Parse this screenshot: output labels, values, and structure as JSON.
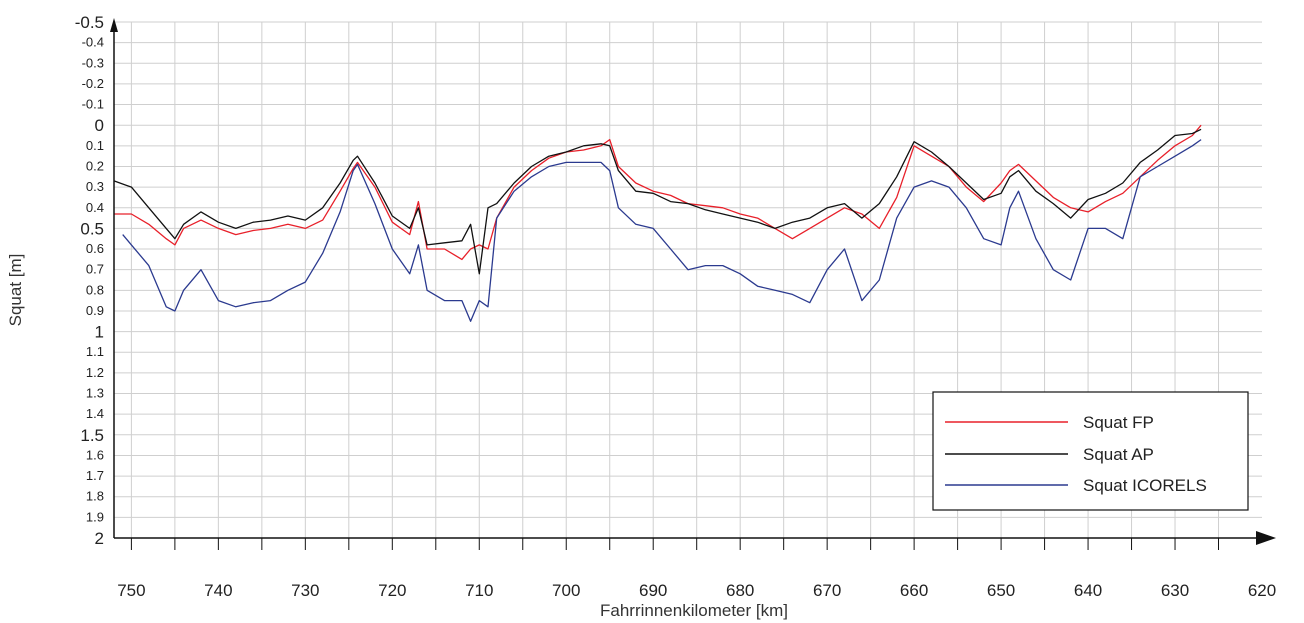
{
  "chart_data": {
    "type": "line",
    "title": "",
    "xlabel": "Fahrrinnenkilometer [km]",
    "ylabel": "Squat [m]",
    "xlim": [
      752,
      620
    ],
    "ylim": [
      -0.5,
      2
    ],
    "y_inverted": true,
    "x_ticks": [
      750,
      740,
      730,
      720,
      710,
      700,
      690,
      680,
      670,
      660,
      650,
      640,
      630,
      620
    ],
    "y_ticks": [
      "-0.5",
      "-0.4",
      "-0.3",
      "-0.2",
      "-0.1",
      "0",
      "0.1",
      "0.2",
      "0.3",
      "0.4",
      "0.5",
      "0.6",
      "0.7",
      "0.8",
      "0.9",
      "1",
      "1.1",
      "1.2",
      "1.3",
      "1.4",
      "1.5",
      "1.6",
      "1.7",
      "1.8",
      "1.9",
      "2"
    ],
    "grid": true,
    "legend_position": "bottom-right",
    "series": [
      {
        "name": "Squat FP",
        "color": "#e8202a",
        "x": [
          752,
          750,
          748,
          746,
          745,
          744,
          742,
          740,
          738,
          736,
          734,
          732,
          730,
          728,
          726,
          724.5,
          724,
          722,
          720,
          718,
          717,
          716,
          714,
          712,
          711,
          710,
          709,
          708,
          706,
          704,
          702,
          700,
          698,
          696,
          695,
          694,
          692,
          690,
          688,
          686,
          684,
          682,
          680,
          678,
          676,
          674,
          672,
          670,
          668,
          666,
          664,
          662,
          660,
          658,
          656,
          654,
          652,
          650,
          649,
          648,
          646,
          644,
          642,
          640,
          638,
          636,
          634,
          632,
          630,
          628,
          627
        ],
        "y": [
          0.43,
          0.43,
          0.48,
          0.55,
          0.58,
          0.5,
          0.46,
          0.5,
          0.53,
          0.51,
          0.5,
          0.48,
          0.5,
          0.46,
          0.32,
          0.21,
          0.18,
          0.3,
          0.47,
          0.53,
          0.37,
          0.6,
          0.6,
          0.65,
          0.6,
          0.58,
          0.6,
          0.45,
          0.3,
          0.22,
          0.16,
          0.13,
          0.12,
          0.1,
          0.07,
          0.2,
          0.28,
          0.32,
          0.34,
          0.38,
          0.39,
          0.4,
          0.43,
          0.45,
          0.5,
          0.55,
          0.5,
          0.45,
          0.4,
          0.43,
          0.5,
          0.35,
          0.1,
          0.15,
          0.2,
          0.3,
          0.37,
          0.28,
          0.22,
          0.19,
          0.27,
          0.35,
          0.4,
          0.42,
          0.37,
          0.33,
          0.25,
          0.17,
          0.1,
          0.05,
          0.0
        ]
      },
      {
        "name": "Squat AP",
        "color": "#111111",
        "x": [
          752,
          750,
          748,
          746,
          745,
          744,
          742,
          740,
          738,
          736,
          734,
          732,
          730,
          728,
          726,
          724.5,
          724,
          722,
          720,
          718,
          717,
          716,
          714,
          712,
          711,
          710,
          709,
          708,
          706,
          704,
          702,
          700,
          698,
          696,
          695,
          694,
          692,
          690,
          688,
          686,
          684,
          682,
          680,
          678,
          676,
          674,
          672,
          670,
          668,
          666,
          664,
          662,
          660,
          658,
          656,
          654,
          652,
          650,
          649,
          648,
          646,
          644,
          642,
          640,
          638,
          636,
          634,
          632,
          630,
          628,
          627
        ],
        "y": [
          0.27,
          0.3,
          0.4,
          0.5,
          0.55,
          0.48,
          0.42,
          0.47,
          0.5,
          0.47,
          0.46,
          0.44,
          0.46,
          0.4,
          0.28,
          0.17,
          0.15,
          0.28,
          0.44,
          0.5,
          0.4,
          0.58,
          0.57,
          0.56,
          0.48,
          0.72,
          0.4,
          0.38,
          0.28,
          0.2,
          0.15,
          0.13,
          0.1,
          0.09,
          0.1,
          0.22,
          0.32,
          0.33,
          0.37,
          0.38,
          0.41,
          0.43,
          0.45,
          0.47,
          0.5,
          0.47,
          0.45,
          0.4,
          0.38,
          0.45,
          0.38,
          0.25,
          0.08,
          0.13,
          0.2,
          0.28,
          0.36,
          0.33,
          0.25,
          0.22,
          0.32,
          0.38,
          0.45,
          0.36,
          0.33,
          0.28,
          0.18,
          0.12,
          0.05,
          0.04,
          0.02
        ]
      },
      {
        "name": "Squat ICORELS",
        "color": "#2b3a8f",
        "x": [
          751,
          750,
          748,
          746,
          745,
          744,
          742,
          740,
          738,
          736,
          734,
          732,
          730,
          728,
          726,
          724.5,
          724,
          722,
          720,
          718,
          717,
          716,
          714,
          712,
          711,
          710,
          709,
          708,
          706,
          704,
          702,
          700,
          698,
          696,
          695,
          694,
          692,
          690,
          688,
          686,
          684,
          682,
          680,
          678,
          676,
          674,
          672,
          670,
          668,
          666,
          664,
          662,
          660,
          658,
          656,
          654,
          652,
          650,
          649,
          648,
          646,
          644,
          642,
          640,
          638,
          636,
          634,
          632,
          630,
          628,
          627
        ],
        "y": [
          0.53,
          0.58,
          0.68,
          0.88,
          0.9,
          0.8,
          0.7,
          0.85,
          0.88,
          0.86,
          0.85,
          0.8,
          0.76,
          0.62,
          0.42,
          0.22,
          0.19,
          0.38,
          0.6,
          0.72,
          0.58,
          0.8,
          0.85,
          0.85,
          0.95,
          0.85,
          0.88,
          0.45,
          0.32,
          0.25,
          0.2,
          0.18,
          0.18,
          0.18,
          0.22,
          0.4,
          0.48,
          0.5,
          0.6,
          0.7,
          0.68,
          0.68,
          0.72,
          0.78,
          0.8,
          0.82,
          0.86,
          0.7,
          0.6,
          0.85,
          0.75,
          0.45,
          0.3,
          0.27,
          0.3,
          0.4,
          0.55,
          0.58,
          0.4,
          0.32,
          0.55,
          0.7,
          0.75,
          0.5,
          0.5,
          0.55,
          0.25,
          0.2,
          0.15,
          0.1,
          0.07
        ]
      }
    ]
  }
}
